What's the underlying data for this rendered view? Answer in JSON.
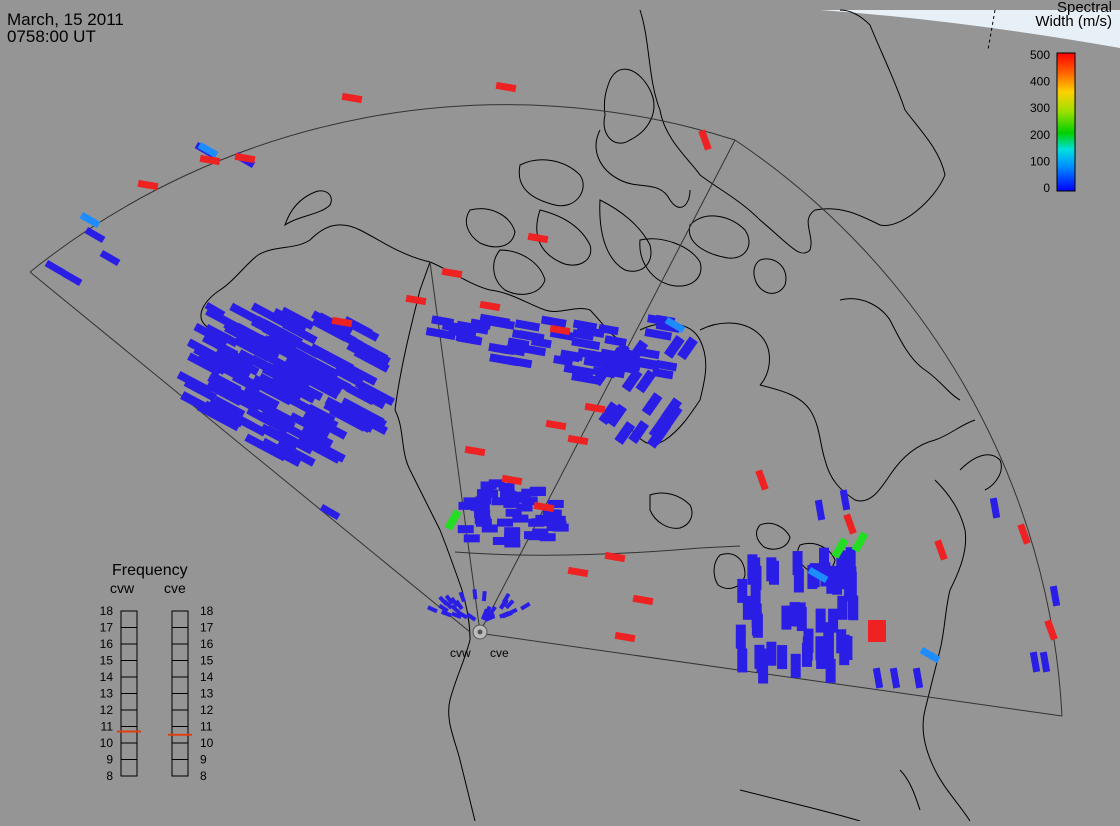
{
  "header": {
    "date": "March, 15 2011",
    "time": "0758:00 UT"
  },
  "colorbar": {
    "title_line1": "Spectral",
    "title_line2": "Width (m/s)",
    "ticks": [
      "500",
      "400",
      "300",
      "200",
      "100",
      "0"
    ],
    "value_range": [
      0,
      500
    ]
  },
  "frequency_panel": {
    "title": "Frequency",
    "radars": [
      {
        "name": "cvw",
        "value_mhz": 10.7
      },
      {
        "name": "cve",
        "value_mhz": 10.5
      }
    ],
    "scale": [
      "18",
      "17",
      "16",
      "15",
      "14",
      "13",
      "12",
      "11",
      "10",
      "9",
      "8"
    ],
    "marker_color": "#e04010"
  },
  "radar_labels": [
    "cvw",
    "cve"
  ],
  "colors": {
    "background": "#959595",
    "low_width": "#2a1ee6",
    "mid_width": "#1e8cff",
    "green": "#22dd22",
    "high_width": "#ee2222"
  }
}
